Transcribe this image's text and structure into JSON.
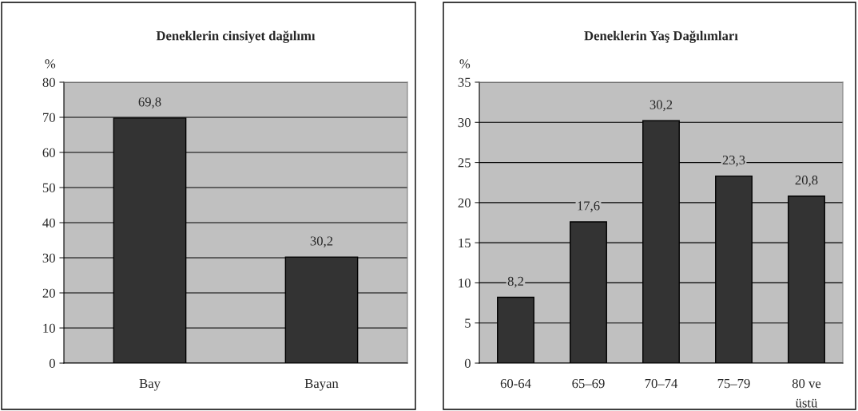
{
  "chart_data": [
    {
      "type": "bar",
      "title": "Deneklerin cinsiyet dağılımı",
      "ylabel": "%",
      "categories": [
        "Bay",
        "Bayan"
      ],
      "values": [
        69.8,
        30.2
      ],
      "value_labels": [
        "69,8",
        "30,2"
      ],
      "color": "#333333",
      "ylim": [
        0,
        80
      ],
      "yticks": [
        0,
        10,
        20,
        30,
        40,
        50,
        60,
        70,
        80
      ],
      "grid": "y"
    },
    {
      "type": "bar",
      "title": "Deneklerin Yaş Dağılımları",
      "ylabel": "%",
      "categories": [
        "60-64",
        "65–69",
        "70–74",
        "75–79",
        "80 ve\nüstü"
      ],
      "values": [
        8.2,
        17.6,
        30.2,
        23.3,
        20.8
      ],
      "value_labels": [
        "8,2",
        "17,6",
        "30,2",
        "23,3",
        "20,8"
      ],
      "color": "#333333",
      "ylim": [
        0,
        35
      ],
      "yticks": [
        0,
        5,
        10,
        15,
        20,
        25,
        30,
        35
      ],
      "grid": "y"
    }
  ]
}
